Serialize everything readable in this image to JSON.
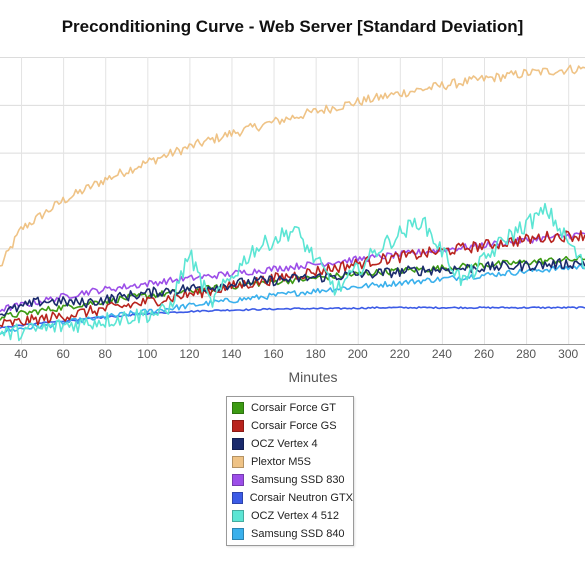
{
  "chart_data": {
    "type": "line",
    "title": "Preconditioning Curve - Web Server [Standard Deviation]",
    "xlabel": "Minutes",
    "ylabel": "",
    "xlim": [
      30,
      308
    ],
    "ylim": [
      0,
      30
    ],
    "x_ticks": [
      40,
      60,
      80,
      100,
      120,
      140,
      160,
      180,
      200,
      220,
      240,
      260,
      280,
      300
    ],
    "y_gridlines": [
      0,
      5,
      10,
      15,
      20,
      25,
      30
    ],
    "grid": true,
    "legend_position": "bottom",
    "series": [
      {
        "name": "Corsair Force GT",
        "color": "#3c9a13",
        "x": [
          30,
          50,
          70,
          90,
          110,
          130,
          150,
          170,
          190,
          210,
          230,
          250,
          270,
          290,
          308
        ],
        "y": [
          2.8,
          3.5,
          4.2,
          4.8,
          5.3,
          5.8,
          6.3,
          6.7,
          7.1,
          7.5,
          7.8,
          8.1,
          8.4,
          8.7,
          8.9
        ]
      },
      {
        "name": "Corsair Force GS",
        "color": "#b8231d",
        "x": [
          30,
          50,
          70,
          90,
          110,
          130,
          150,
          170,
          190,
          210,
          230,
          250,
          270,
          290,
          308
        ],
        "y": [
          2.0,
          2.6,
          3.3,
          4.0,
          4.8,
          5.6,
          6.4,
          7.2,
          8.0,
          8.8,
          9.4,
          10.0,
          10.6,
          11.2,
          11.4
        ]
      },
      {
        "name": "OCZ Vertex 4",
        "color": "#1a2a6c",
        "x": [
          30,
          50,
          70,
          90,
          110,
          130,
          150,
          170,
          190,
          210,
          230,
          250,
          270,
          290,
          308
        ],
        "y": [
          3.2,
          4.5,
          4.3,
          5.0,
          5.6,
          6.0,
          6.5,
          6.8,
          7.1,
          7.4,
          7.7,
          7.9,
          8.1,
          8.3,
          8.5
        ]
      },
      {
        "name": "Plextor M5S",
        "color": "#efc386",
        "x": [
          30,
          40,
          60,
          80,
          100,
          120,
          140,
          160,
          180,
          200,
          220,
          240,
          260,
          280,
          300,
          308
        ],
        "y": [
          8.0,
          12.0,
          15.0,
          17.2,
          19.0,
          20.6,
          22.0,
          23.2,
          24.3,
          25.3,
          26.2,
          27.0,
          27.7,
          28.3,
          28.7,
          28.8
        ]
      },
      {
        "name": "Samsung SSD 830",
        "color": "#9c4ee8",
        "x": [
          30,
          50,
          70,
          90,
          110,
          130,
          150,
          170,
          190,
          210,
          230,
          250,
          270,
          290,
          308
        ],
        "y": [
          3.6,
          4.5,
          5.4,
          6.0,
          6.6,
          7.1,
          7.6,
          8.1,
          8.6,
          9.1,
          9.6,
          10.1,
          10.6,
          11.1,
          11.5
        ]
      },
      {
        "name": "Corsair Neutron GTX",
        "color": "#3c5be6",
        "x": [
          30,
          50,
          70,
          90,
          110,
          130,
          150,
          170,
          190,
          210,
          230,
          250,
          270,
          290,
          308
        ],
        "y": [
          1.7,
          2.2,
          2.6,
          3.0,
          3.3,
          3.5,
          3.6,
          3.7,
          3.7,
          3.8,
          3.8,
          3.8,
          3.8,
          3.8,
          3.8
        ]
      },
      {
        "name": "OCZ Vertex 4 512",
        "color": "#5ce5d4",
        "x": [
          30,
          50,
          70,
          90,
          110,
          120,
          130,
          150,
          170,
          190,
          210,
          230,
          250,
          270,
          290,
          308
        ],
        "y": [
          1.0,
          1.6,
          2.2,
          2.8,
          3.4,
          9.5,
          4.2,
          9.8,
          12.0,
          5.6,
          10.0,
          13.0,
          6.5,
          11.0,
          14.0,
          8.0
        ]
      },
      {
        "name": "Samsung SSD 840",
        "color": "#3ab0ec",
        "x": [
          30,
          50,
          70,
          90,
          110,
          130,
          150,
          170,
          190,
          210,
          230,
          250,
          270,
          290,
          308
        ],
        "y": [
          1.3,
          1.9,
          2.5,
          3.1,
          3.7,
          4.3,
          4.8,
          5.3,
          5.8,
          6.2,
          6.6,
          7.0,
          7.4,
          7.8,
          8.1
        ]
      }
    ]
  }
}
